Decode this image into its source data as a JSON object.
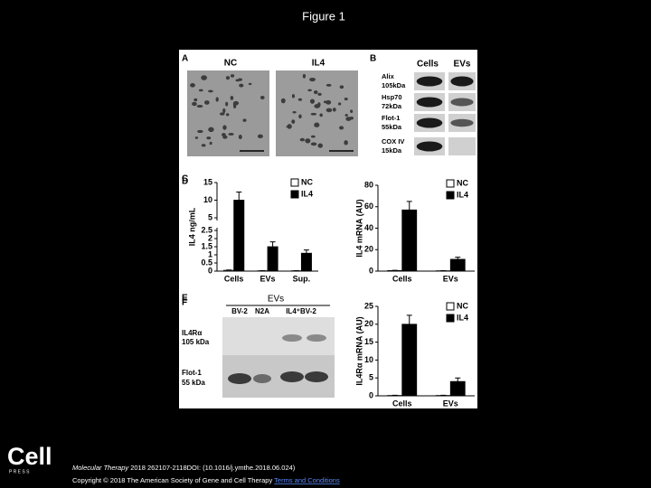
{
  "header": {
    "title": "Figure 1"
  },
  "figure": {
    "panel_a": {
      "letter": "A",
      "labels": [
        "NC",
        "IL4"
      ]
    },
    "panel_b": {
      "letter": "B",
      "columns": [
        "Cells",
        "EVs"
      ],
      "rows": [
        [
          "Alix",
          "105kDa"
        ],
        [
          "Hsp70",
          "72kDa"
        ],
        [
          "Flot-1",
          "55kDa"
        ],
        [
          "COX IV",
          "15kDa"
        ]
      ]
    },
    "panel_e": {
      "letter": "E",
      "group": "EVs",
      "lanes": [
        "BV-2",
        "N2A",
        "IL4⁺BV-2"
      ],
      "rows": [
        [
          "IL4Rα",
          "105 kDa"
        ],
        [
          "Flot-1",
          "55 kDa"
        ]
      ]
    }
  },
  "chart_data": [
    {
      "type": "bar",
      "panel": "C",
      "y_label": "IL4 ng/mL",
      "categories": [
        "Cells",
        "EVs",
        "Sup."
      ],
      "series": [
        {
          "name": "NC",
          "color": "#ffffff",
          "values": [
            0.05,
            0.02,
            0.02
          ],
          "errors": [
            0.02,
            0.01,
            0.01
          ]
        },
        {
          "name": "IL4",
          "color": "#000000",
          "values": [
            10,
            1.5,
            1.1
          ],
          "errors": [
            2.3,
            0.3,
            0.2
          ]
        }
      ],
      "ylim": [
        0,
        15
      ],
      "y_break": [
        2.5,
        5
      ],
      "yticks": [
        0,
        0.5,
        1,
        1.5,
        2,
        2.5,
        5,
        10,
        15
      ]
    },
    {
      "type": "bar",
      "panel": "D",
      "y_label": "IL4 mRNA (AU)",
      "categories": [
        "Cells",
        "EVs"
      ],
      "series": [
        {
          "name": "NC",
          "color": "#ffffff",
          "values": [
            0.5,
            0.3
          ],
          "errors": [
            0.2,
            0.1
          ]
        },
        {
          "name": "IL4",
          "color": "#000000",
          "values": [
            57,
            11
          ],
          "errors": [
            8,
            2
          ]
        }
      ],
      "ylim": [
        0,
        80
      ],
      "yticks": [
        0,
        20,
        40,
        60,
        80
      ]
    },
    {
      "type": "bar",
      "panel": "F",
      "y_label": "IL4Rα mRNA (AU)",
      "categories": [
        "Cells",
        "EVs"
      ],
      "series": [
        {
          "name": "NC",
          "color": "#ffffff",
          "values": [
            0.1,
            0.1
          ],
          "errors": [
            0.05,
            0.05
          ]
        },
        {
          "name": "IL4",
          "color": "#000000",
          "values": [
            20,
            4
          ],
          "errors": [
            2.5,
            1
          ]
        }
      ],
      "ylim": [
        0,
        25
      ],
      "yticks": [
        0,
        5,
        10,
        15,
        20,
        25
      ]
    }
  ],
  "footer": {
    "logo": "Cell",
    "logo_sub": "P R E S S",
    "journal": "Molecular Therapy",
    "citation": "2018 262107-2118DOI: (10.1016/j.ymthe.2018.06.024)",
    "copyright": "Copyright © 2018 The American Society of Gene and Cell Therapy",
    "link": "Terms and Conditions"
  }
}
